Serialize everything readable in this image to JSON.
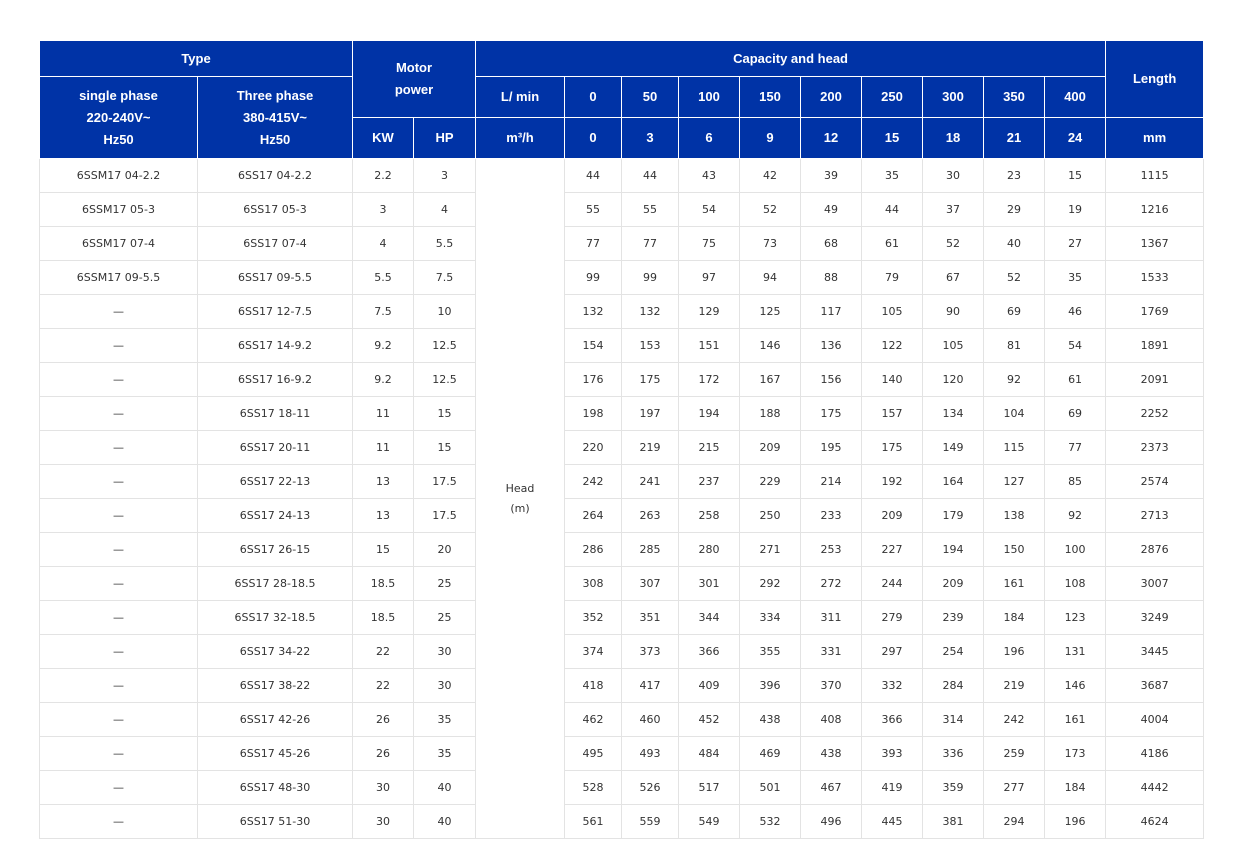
{
  "header": {
    "type": "Type",
    "motor_power": "Motor power",
    "capacity_head": "Capacity and head",
    "length": "Length",
    "single_phase": [
      "single phase",
      "220-240V~",
      "Hz50"
    ],
    "three_phase": [
      "Three phase",
      "380-415V~",
      "Hz50"
    ],
    "flow_unit_lmin": "L/ min",
    "flow_unit_m3h": "m³/h",
    "kw": "KW",
    "hp": "HP",
    "mm": "mm",
    "lmin_values": [
      "0",
      "50",
      "100",
      "150",
      "200",
      "250",
      "300",
      "350",
      "400"
    ],
    "m3h_values": [
      "0",
      "3",
      "6",
      "9",
      "12",
      "15",
      "18",
      "21",
      "24"
    ]
  },
  "head_label": [
    "Head",
    "(m)"
  ],
  "rows": [
    {
      "single": "6SSM17 04-2.2",
      "three": "6SS17 04-2.2",
      "kw": "2.2",
      "hp": "3",
      "heads": [
        "44",
        "44",
        "43",
        "42",
        "39",
        "35",
        "30",
        "23",
        "15"
      ],
      "length": "1115"
    },
    {
      "single": "6SSM17 05-3",
      "three": "6SS17 05-3",
      "kw": "3",
      "hp": "4",
      "heads": [
        "55",
        "55",
        "54",
        "52",
        "49",
        "44",
        "37",
        "29",
        "19"
      ],
      "length": "1216"
    },
    {
      "single": "6SSM17 07-4",
      "three": "6SS17 07-4",
      "kw": "4",
      "hp": "5.5",
      "heads": [
        "77",
        "77",
        "75",
        "73",
        "68",
        "61",
        "52",
        "40",
        "27"
      ],
      "length": "1367"
    },
    {
      "single": "6SSM17 09-5.5",
      "three": "6SS17 09-5.5",
      "kw": "5.5",
      "hp": "7.5",
      "heads": [
        "99",
        "99",
        "97",
        "94",
        "88",
        "79",
        "67",
        "52",
        "35"
      ],
      "length": "1533"
    },
    {
      "single": "—",
      "three": "6SS17 12-7.5",
      "kw": "7.5",
      "hp": "10",
      "heads": [
        "132",
        "132",
        "129",
        "125",
        "117",
        "105",
        "90",
        "69",
        "46"
      ],
      "length": "1769"
    },
    {
      "single": "—",
      "three": "6SS17 14-9.2",
      "kw": "9.2",
      "hp": "12.5",
      "heads": [
        "154",
        "153",
        "151",
        "146",
        "136",
        "122",
        "105",
        "81",
        "54"
      ],
      "length": "1891"
    },
    {
      "single": "—",
      "three": "6SS17 16-9.2",
      "kw": "9.2",
      "hp": "12.5",
      "heads": [
        "176",
        "175",
        "172",
        "167",
        "156",
        "140",
        "120",
        "92",
        "61"
      ],
      "length": "2091"
    },
    {
      "single": "—",
      "three": "6SS17 18-11",
      "kw": "11",
      "hp": "15",
      "heads": [
        "198",
        "197",
        "194",
        "188",
        "175",
        "157",
        "134",
        "104",
        "69"
      ],
      "length": "2252"
    },
    {
      "single": "—",
      "three": "6SS17 20-11",
      "kw": "11",
      "hp": "15",
      "heads": [
        "220",
        "219",
        "215",
        "209",
        "195",
        "175",
        "149",
        "115",
        "77"
      ],
      "length": "2373"
    },
    {
      "single": "—",
      "three": "6SS17 22-13",
      "kw": "13",
      "hp": "17.5",
      "heads": [
        "242",
        "241",
        "237",
        "229",
        "214",
        "192",
        "164",
        "127",
        "85"
      ],
      "length": "2574"
    },
    {
      "single": "—",
      "three": "6SS17 24-13",
      "kw": "13",
      "hp": "17.5",
      "heads": [
        "264",
        "263",
        "258",
        "250",
        "233",
        "209",
        "179",
        "138",
        "92"
      ],
      "length": "2713"
    },
    {
      "single": "—",
      "three": "6SS17 26-15",
      "kw": "15",
      "hp": "20",
      "heads": [
        "286",
        "285",
        "280",
        "271",
        "253",
        "227",
        "194",
        "150",
        "100"
      ],
      "length": "2876"
    },
    {
      "single": "—",
      "three": "6SS17 28-18.5",
      "kw": "18.5",
      "hp": "25",
      "heads": [
        "308",
        "307",
        "301",
        "292",
        "272",
        "244",
        "209",
        "161",
        "108"
      ],
      "length": "3007"
    },
    {
      "single": "—",
      "three": "6SS17 32-18.5",
      "kw": "18.5",
      "hp": "25",
      "heads": [
        "352",
        "351",
        "344",
        "334",
        "311",
        "279",
        "239",
        "184",
        "123"
      ],
      "length": "3249"
    },
    {
      "single": "—",
      "three": "6SS17 34-22",
      "kw": "22",
      "hp": "30",
      "heads": [
        "374",
        "373",
        "366",
        "355",
        "331",
        "297",
        "254",
        "196",
        "131"
      ],
      "length": "3445"
    },
    {
      "single": "—",
      "three": "6SS17 38-22",
      "kw": "22",
      "hp": "30",
      "heads": [
        "418",
        "417",
        "409",
        "396",
        "370",
        "332",
        "284",
        "219",
        "146"
      ],
      "length": "3687"
    },
    {
      "single": "—",
      "three": "6SS17 42-26",
      "kw": "26",
      "hp": "35",
      "heads": [
        "462",
        "460",
        "452",
        "438",
        "408",
        "366",
        "314",
        "242",
        "161"
      ],
      "length": "4004"
    },
    {
      "single": "—",
      "three": "6SS17 45-26",
      "kw": "26",
      "hp": "35",
      "heads": [
        "495",
        "493",
        "484",
        "469",
        "438",
        "393",
        "336",
        "259",
        "173"
      ],
      "length": "4186"
    },
    {
      "single": "—",
      "three": "6SS17 48-30",
      "kw": "30",
      "hp": "40",
      "heads": [
        "528",
        "526",
        "517",
        "501",
        "467",
        "419",
        "359",
        "277",
        "184"
      ],
      "length": "4442"
    },
    {
      "single": "—",
      "three": "6SS17 51-30",
      "kw": "30",
      "hp": "40",
      "heads": [
        "561",
        "559",
        "549",
        "532",
        "496",
        "445",
        "381",
        "294",
        "196"
      ],
      "length": "4624"
    }
  ]
}
